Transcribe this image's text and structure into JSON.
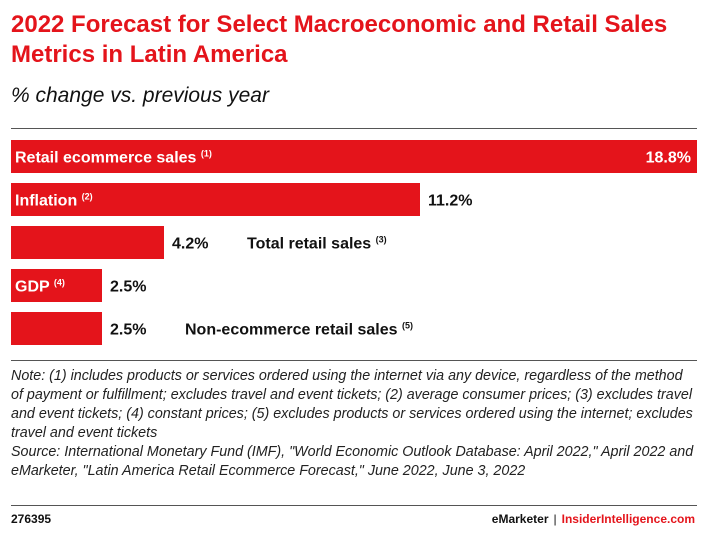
{
  "header": {
    "title": "2022 Forecast for Select Macroeconomic and Retail Sales Metrics in Latin America",
    "subtitle": "% change vs. previous year"
  },
  "colors": {
    "bar": "#e4141b",
    "accent": "#e4141b",
    "text": "#111111"
  },
  "chart_data": {
    "type": "bar",
    "orientation": "horizontal",
    "title": "2022 Forecast for Select Macroeconomic and Retail Sales Metrics in Latin America",
    "subtitle": "% change vs. previous year",
    "xlabel": "",
    "ylabel": "",
    "xlim": [
      0,
      18.8
    ],
    "grid": false,
    "categories": [
      "Retail ecommerce sales",
      "Inflation",
      "Total retail sales",
      "GDP",
      "Non-ecommerce retail sales"
    ],
    "footnote_marks": [
      "(1)",
      "(2)",
      "(3)",
      "(4)",
      "(5)"
    ],
    "values": [
      18.8,
      11.2,
      4.2,
      2.5,
      2.5
    ],
    "value_labels": [
      "18.8%",
      "11.2%",
      "4.2%",
      "2.5%",
      "2.5%"
    ],
    "label_inside_bar": [
      true,
      true,
      false,
      true,
      false
    ]
  },
  "notes": {
    "note": "Note: (1) includes products or services ordered using the internet via any device, regardless of the method of payment or fulfillment; excludes travel and event tickets; (2) average consumer prices; (3) excludes travel and event tickets; (4) constant prices; (5) excludes products or services ordered using the internet; excludes travel and event tickets",
    "source": "Source: International Monetary Fund (IMF), \"World Economic Outlook Database: April 2022,\" April 2022 and eMarketer, \"Latin America Retail Ecommerce Forecast,\" June 2022, June 3, 2022"
  },
  "footer": {
    "chart_id": "276395",
    "brand_left": "eMarketer",
    "separator": "|",
    "brand_right": "InsiderIntelligence.com"
  }
}
